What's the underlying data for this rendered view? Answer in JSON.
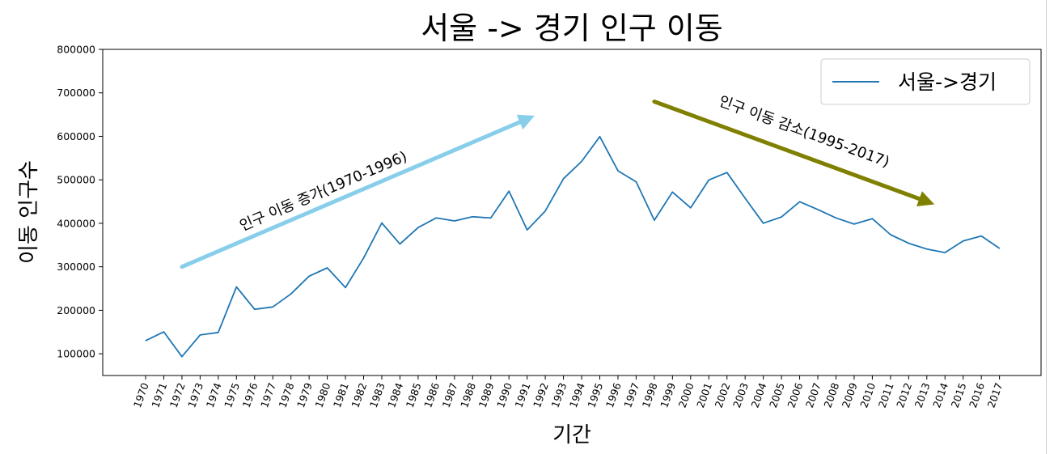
{
  "chart_data": {
    "type": "line",
    "title": "서울 -> 경기 인구 이동",
    "xlabel": "기간",
    "ylabel": "이동 인구수",
    "ylim": [
      50000,
      800000
    ],
    "yticks": [
      100000,
      200000,
      300000,
      400000,
      500000,
      600000,
      700000,
      800000
    ],
    "grid": false,
    "legend_placement": "upper-right",
    "x": [
      "1970",
      "1971",
      "1972",
      "1973",
      "1974",
      "1975",
      "1976",
      "1977",
      "1978",
      "1979",
      "1980",
      "1981",
      "1982",
      "1983",
      "1984",
      "1985",
      "1986",
      "1987",
      "1988",
      "1989",
      "1990",
      "1991",
      "1992",
      "1993",
      "1994",
      "1995",
      "1996",
      "1997",
      "1998",
      "1999",
      "2000",
      "2001",
      "2002",
      "2003",
      "2004",
      "2005",
      "2006",
      "2007",
      "2008",
      "2009",
      "2010",
      "2011",
      "2012",
      "2013",
      "2014",
      "2015",
      "2016",
      "2017"
    ],
    "series": [
      {
        "name": "서울->경기",
        "color": "#1f77b4",
        "values": [
          130149,
          150313,
          93333,
          143234,
          149045,
          253705,
          202276,
          207722,
          237684,
          278411,
          297539,
          252073,
          320174,
          400875,
          352238,
          390265,
          412535,
          405495,
          415174,
          412081,
          473889,
          384714,
          428344,
          502584,
          542204,
          599411,
          520566,
          495454,
          407050,
          471841,
          435573,
          499575,
          516765,
          457656,
          400206,
          414621,
          449632,
          431637,
          412408,
          398282,
          410735,
          373771,
          354135,
          340801,
          332785,
          359337,
          370760,
          342433
        ]
      }
    ],
    "annotations": [
      {
        "text": "인구 이동 증가(1970-1996)",
        "arrow_color": "#87ceeb",
        "arrow_from": {
          "x": "1972",
          "y": 300000
        },
        "arrow_to": {
          "x": "1991",
          "y": 640000
        }
      },
      {
        "text": "인구 이동 감소(1995-2017)",
        "arrow_color": "#808000",
        "arrow_from": {
          "x": "1998",
          "y": 680000
        },
        "arrow_to": {
          "x": "2013",
          "y": 450000
        }
      }
    ]
  }
}
